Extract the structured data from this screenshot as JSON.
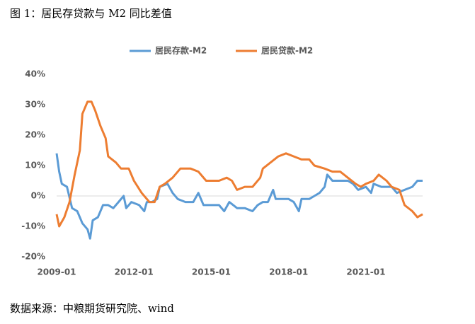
{
  "title": "图 1：居民存贷款与 M2 同比差值",
  "source": "数据来源：中粮期货研究院、wind",
  "chart_data": {
    "type": "line",
    "xlim": [
      2009,
      2023.2
    ],
    "xticks": [
      {
        "value": 2009,
        "label": "2009-01"
      },
      {
        "value": 2012,
        "label": "2012-01"
      },
      {
        "value": 2015,
        "label": "2015-01"
      },
      {
        "value": 2018,
        "label": "2018-01"
      },
      {
        "value": 2021,
        "label": "2021-01"
      }
    ],
    "ylim": [
      -20,
      40
    ],
    "yticks": [
      {
        "value": -20,
        "label": "-20%"
      },
      {
        "value": -10,
        "label": "-10%"
      },
      {
        "value": 0,
        "label": "0%"
      },
      {
        "value": 10,
        "label": "10%"
      },
      {
        "value": 20,
        "label": "20%"
      },
      {
        "value": 30,
        "label": "30%"
      },
      {
        "value": 40,
        "label": "40%"
      }
    ],
    "legend": "top",
    "series": [
      {
        "name": "居民存款-M2",
        "color": "#5b9bd5",
        "x": [
          2009.0,
          2009.1,
          2009.2,
          2009.4,
          2009.6,
          2009.8,
          2010.0,
          2010.2,
          2010.3,
          2010.4,
          2010.6,
          2010.8,
          2011.0,
          2011.2,
          2011.4,
          2011.6,
          2011.7,
          2011.9,
          2012.2,
          2012.4,
          2012.5,
          2012.7,
          2012.9,
          2013.0,
          2013.3,
          2013.5,
          2013.7,
          2014.0,
          2014.3,
          2014.5,
          2014.7,
          2015.0,
          2015.3,
          2015.5,
          2015.7,
          2016.0,
          2016.3,
          2016.6,
          2016.8,
          2017.0,
          2017.2,
          2017.4,
          2017.5,
          2017.8,
          2018.0,
          2018.2,
          2018.4,
          2018.5,
          2018.8,
          2019.0,
          2019.2,
          2019.4,
          2019.5,
          2019.7,
          2020.0,
          2020.3,
          2020.5,
          2020.7,
          2021.0,
          2021.2,
          2021.3,
          2021.6,
          2022.0,
          2022.2,
          2022.5,
          2022.8,
          2023.0,
          2023.2
        ],
        "values": [
          14,
          8,
          4,
          3,
          -4,
          -5,
          -9,
          -11,
          -14,
          -8,
          -7,
          -3,
          -3,
          -4,
          -2,
          0,
          -4,
          -2,
          -3,
          -5,
          -2,
          -2,
          -1,
          3,
          4,
          1,
          -1,
          -2,
          -2,
          1,
          -3,
          -3,
          -3,
          -5,
          -2,
          -4,
          -4,
          -5,
          -3,
          -2,
          -2,
          2,
          -1,
          -1,
          -1,
          -2,
          -5,
          -1,
          -1,
          0,
          1,
          3,
          7,
          5,
          5,
          5,
          4,
          2,
          3,
          1,
          4,
          3,
          3,
          1,
          2,
          3,
          5,
          5
        ]
      },
      {
        "name": "居民贷款-M2",
        "color": "#ed7d31",
        "x": [
          2009.0,
          2009.1,
          2009.3,
          2009.5,
          2009.7,
          2009.9,
          2010.0,
          2010.2,
          2010.35,
          2010.5,
          2010.7,
          2010.9,
          2011.0,
          2011.3,
          2011.5,
          2011.8,
          2012.0,
          2012.3,
          2012.6,
          2012.8,
          2013.0,
          2013.2,
          2013.5,
          2013.8,
          2014.2,
          2014.5,
          2014.8,
          2015.0,
          2015.3,
          2015.6,
          2015.8,
          2016.0,
          2016.3,
          2016.6,
          2016.9,
          2017.0,
          2017.3,
          2017.6,
          2017.9,
          2018.2,
          2018.5,
          2018.8,
          2019.0,
          2019.4,
          2019.7,
          2020.0,
          2020.3,
          2020.6,
          2020.8,
          2021.0,
          2021.3,
          2021.5,
          2021.8,
          2022.0,
          2022.3,
          2022.5,
          2022.8,
          2023.0,
          2023.2
        ],
        "values": [
          -6,
          -10,
          -7,
          -2,
          7,
          15,
          27,
          31,
          31,
          28,
          23,
          19,
          13,
          11,
          9,
          9,
          5,
          1,
          -2,
          -2,
          3,
          4,
          6,
          9,
          9,
          8,
          5,
          5,
          5,
          6,
          5,
          2,
          3,
          3,
          6,
          9,
          11,
          13,
          14,
          13,
          12,
          12,
          10,
          9,
          8,
          8,
          6,
          4,
          3,
          4,
          5,
          7,
          5,
          3,
          2,
          -3,
          -5,
          -7,
          -6
        ]
      }
    ]
  }
}
